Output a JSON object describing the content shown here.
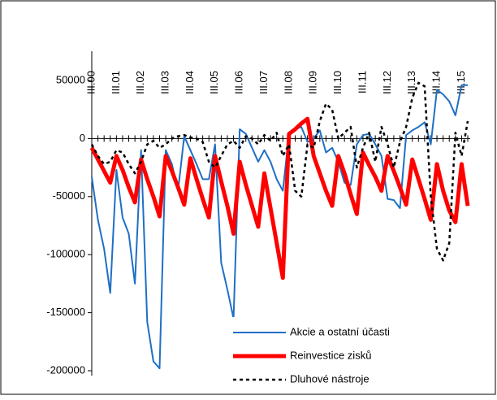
{
  "chart_data": {
    "type": "line",
    "categories": [
      "III.00",
      null,
      null,
      null,
      "III.01",
      null,
      null,
      null,
      "III.02",
      null,
      null,
      null,
      "III.03",
      null,
      null,
      null,
      "III.04",
      null,
      null,
      null,
      "III.05",
      null,
      null,
      null,
      "III.06",
      null,
      null,
      null,
      "III.07",
      null,
      null,
      null,
      "III.08",
      null,
      null,
      null,
      "III.09",
      null,
      null,
      null,
      "III.10",
      null,
      null,
      null,
      "III.11",
      null,
      null,
      null,
      "III.12",
      null,
      null,
      null,
      "III.13",
      null,
      null,
      null,
      "III.14",
      null,
      null,
      null,
      "III.15",
      null
    ],
    "series": [
      {
        "name": "Akcie a ostatní účasti",
        "color": "#1f6fc5",
        "values": [
          -33000,
          -70000,
          -95000,
          -133000,
          -27000,
          -68000,
          -82000,
          -125000,
          -10000,
          -158000,
          -192000,
          -198000,
          -10000,
          -22000,
          -45000,
          2000,
          -10000,
          -22000,
          -35000,
          -35000,
          -5000,
          -107000,
          -130000,
          -155000,
          8000,
          4000,
          -8000,
          -20000,
          -10000,
          -20000,
          -35000,
          -45000,
          4000,
          8000,
          10000,
          -3000,
          0,
          7000,
          -12000,
          -8000,
          -20000,
          -38000,
          -40000,
          -5000,
          3000,
          4000,
          -5000,
          -15000,
          -52000,
          -53000,
          -60000,
          3000,
          7000,
          10000,
          14000,
          -5000,
          42000,
          38000,
          32000,
          20000,
          46000,
          46000
        ]
      },
      {
        "name": "Reinvestice zisků",
        "color": "#ff0000",
        "values": [
          -8000,
          -18000,
          -28000,
          -38000,
          -15000,
          -27000,
          -42000,
          -55000,
          -18000,
          -35000,
          -50000,
          -67000,
          -15000,
          -28000,
          -42000,
          -57000,
          -17000,
          -35000,
          -52000,
          -68000,
          -15000,
          -37000,
          -58000,
          -82000,
          -20000,
          -40000,
          -58000,
          -76000,
          -30000,
          -60000,
          -90000,
          -120000,
          4000,
          8000,
          13000,
          17000,
          -15000,
          -30000,
          -45000,
          -58000,
          -15000,
          -30000,
          -48000,
          -65000,
          -12000,
          -23000,
          -33000,
          -45000,
          -15000,
          -28000,
          -42000,
          -57000,
          -18000,
          -35000,
          -52000,
          -70000,
          -22000,
          -45000,
          -62000,
          -72000,
          -22000,
          -58000
        ]
      },
      {
        "name": "Dluhové nástroje",
        "color": "#000000",
        "values": [
          -5000,
          -15000,
          -22000,
          -20000,
          -10000,
          -12000,
          -22000,
          -30000,
          -20000,
          -5000,
          -2000,
          -8000,
          -5000,
          0,
          2000,
          3000,
          1000,
          0,
          -3000,
          -20000,
          -25000,
          -15000,
          -5000,
          -2000,
          -8000,
          2000,
          0,
          -5000,
          3000,
          -2000,
          5000,
          -15000,
          -5000,
          -45000,
          -50000,
          -5000,
          -8000,
          15000,
          30000,
          25000,
          0,
          5000,
          10000,
          -25000,
          -8000,
          5000,
          -20000,
          10000,
          -5000,
          -25000,
          -3000,
          10000,
          35000,
          48000,
          45000,
          -50000,
          -95000,
          -105000,
          -90000,
          5000,
          -15000,
          15000
        ]
      }
    ],
    "ylim": [
      -200000,
      50000
    ],
    "yticks": [
      -200000,
      -150000,
      -100000,
      -50000,
      0,
      50000
    ]
  }
}
